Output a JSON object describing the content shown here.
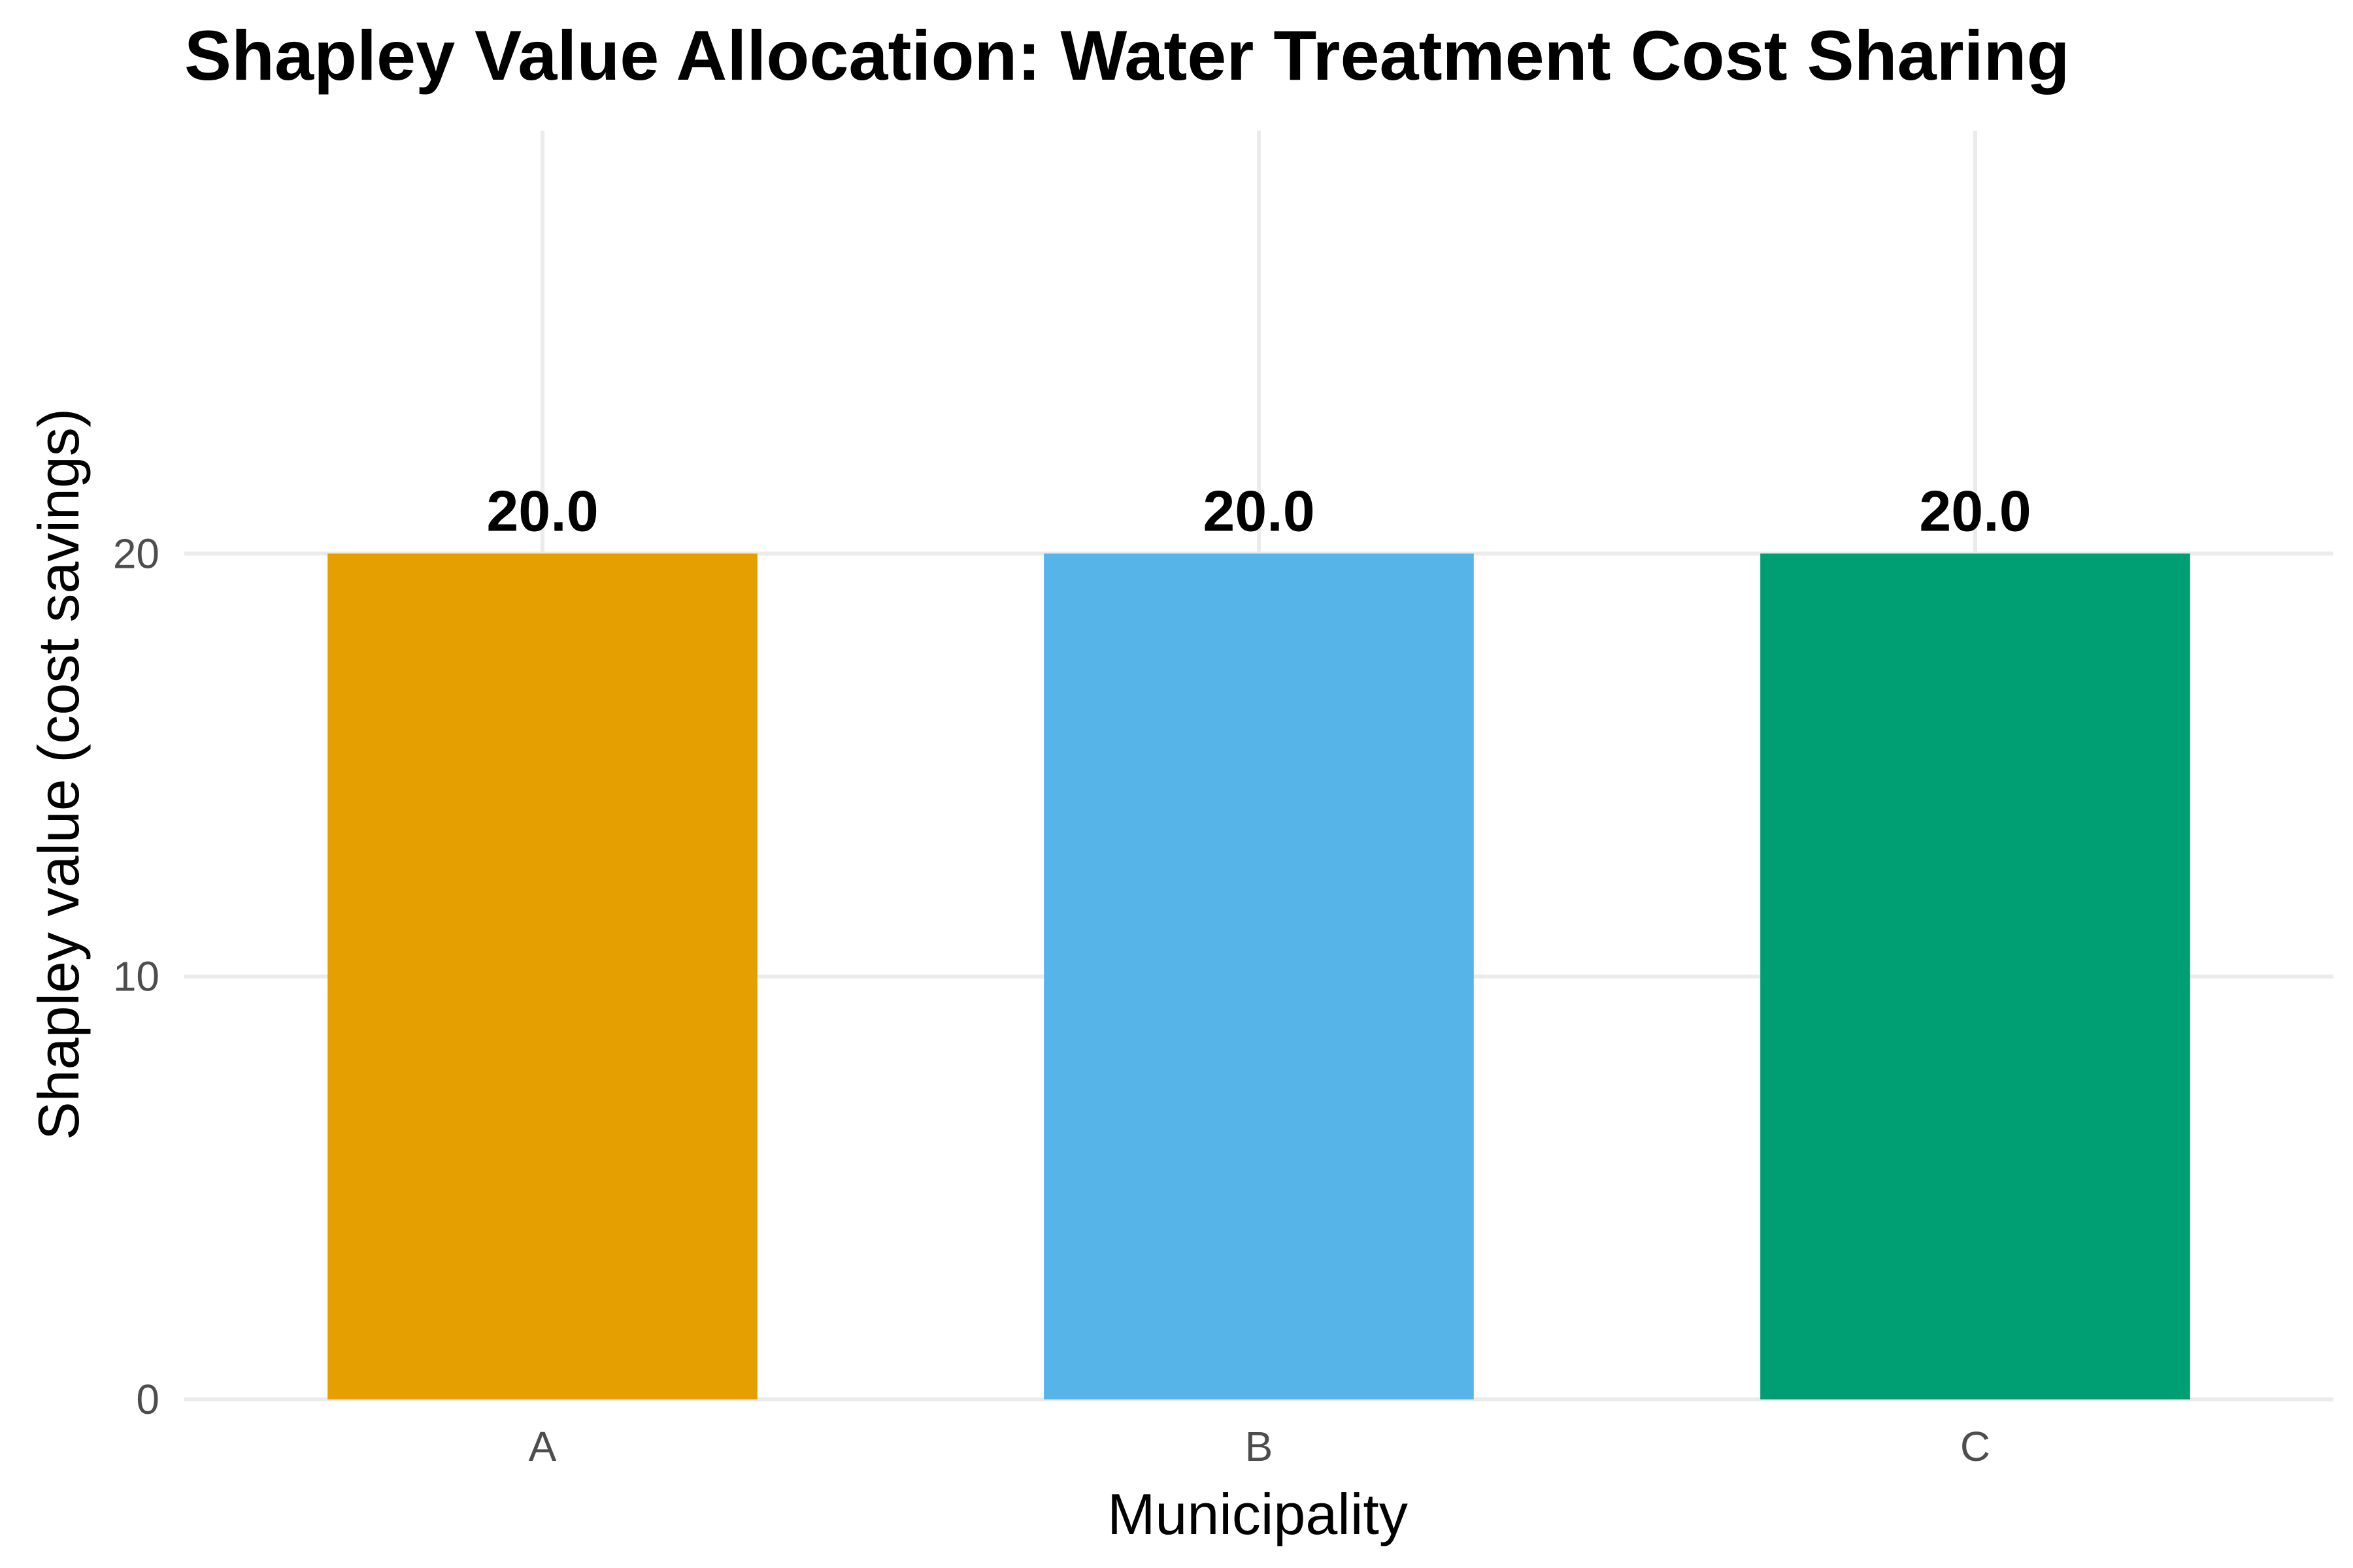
{
  "chart_data": {
    "type": "bar",
    "title": "Shapley Value Allocation: Water Treatment Cost Sharing",
    "xlabel": "Municipality",
    "ylabel": "Shapley value (cost savings)",
    "categories": [
      "A",
      "B",
      "C"
    ],
    "values": [
      20.0,
      20.0,
      20.0
    ],
    "data_labels": [
      "20.0",
      "20.0",
      "20.0"
    ],
    "colors": [
      "#E69F00",
      "#56B4E9",
      "#009E73"
    ],
    "ylim": [
      0,
      30
    ],
    "yticks": [
      0,
      10,
      20
    ],
    "ytick_labels": [
      "0",
      "10",
      "20"
    ],
    "grid": true,
    "legend": "none"
  }
}
